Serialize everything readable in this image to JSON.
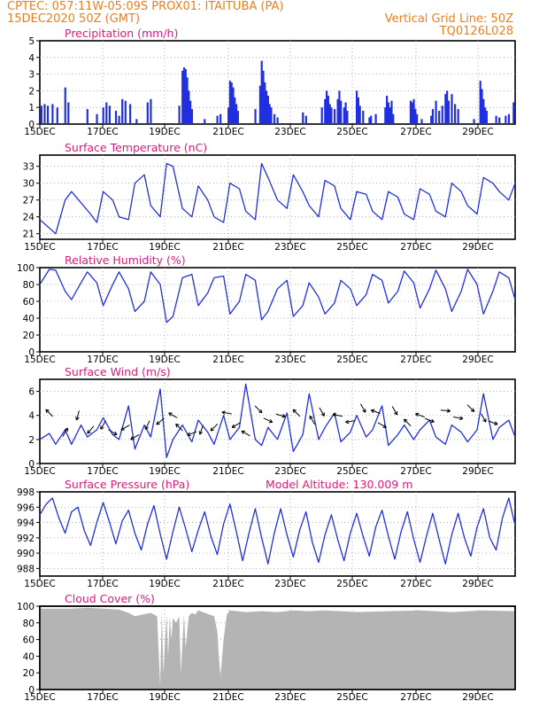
{
  "header": {
    "line1_left": "CPTEC:  057:11W-05:09S  PROX01: ITAITUBA (PA)",
    "line2_left": "15DEC2020 50Z (GMT)",
    "line2_right": "Vertical Grid Line: 50Z",
    "line3_right": "TQ0126L028"
  },
  "colors": {
    "header": "#f07d1a",
    "title": "#e0197a",
    "series": "#2030e0",
    "cloud": "#b4b4b4",
    "grid": "#9a9a9a"
  },
  "x_ticks": [
    "15DEC",
    "17DEC",
    "19DEC",
    "21DEC",
    "23DEC",
    "25DEC",
    "27DEC",
    "29DEC"
  ],
  "chart_data": [
    {
      "id": "precip",
      "type": "bar",
      "title": "Precipitation (mm/h)",
      "unit": "mm/h",
      "ylim": [
        0,
        5
      ],
      "yticks": [
        0,
        1,
        2,
        3,
        4,
        5
      ],
      "x_range_days": [
        15,
        30
      ],
      "bars": [
        [
          15.05,
          1.1
        ],
        [
          15.15,
          1.2
        ],
        [
          15.25,
          1.1
        ],
        [
          15.4,
          1.2
        ],
        [
          15.55,
          1.0
        ],
        [
          15.8,
          2.2
        ],
        [
          15.9,
          1.3
        ],
        [
          16.5,
          0.9
        ],
        [
          16.8,
          0.6
        ],
        [
          17.0,
          1.0
        ],
        [
          17.1,
          1.3
        ],
        [
          17.2,
          1.1
        ],
        [
          17.4,
          0.8
        ],
        [
          17.5,
          0.5
        ],
        [
          17.6,
          1.5
        ],
        [
          17.7,
          1.4
        ],
        [
          17.85,
          1.2
        ],
        [
          18.05,
          0.3
        ],
        [
          18.4,
          1.3
        ],
        [
          18.5,
          1.5
        ],
        [
          19.4,
          1.1
        ],
        [
          19.5,
          3.2
        ],
        [
          19.55,
          3.4
        ],
        [
          19.6,
          3.3
        ],
        [
          19.65,
          2.8
        ],
        [
          19.7,
          2.0
        ],
        [
          19.75,
          1.4
        ],
        [
          19.8,
          0.9
        ],
        [
          20.2,
          0.3
        ],
        [
          20.6,
          0.5
        ],
        [
          20.7,
          0.6
        ],
        [
          20.95,
          1.0
        ],
        [
          21.0,
          2.6
        ],
        [
          21.05,
          2.5
        ],
        [
          21.1,
          2.2
        ],
        [
          21.15,
          1.6
        ],
        [
          21.2,
          1.2
        ],
        [
          21.25,
          0.8
        ],
        [
          21.8,
          0.9
        ],
        [
          21.95,
          2.3
        ],
        [
          22.0,
          3.8
        ],
        [
          22.05,
          3.2
        ],
        [
          22.1,
          2.5
        ],
        [
          22.15,
          2.0
        ],
        [
          22.2,
          1.7
        ],
        [
          22.25,
          1.2
        ],
        [
          22.3,
          1.0
        ],
        [
          22.4,
          0.6
        ],
        [
          22.5,
          0.4
        ],
        [
          23.3,
          0.7
        ],
        [
          23.4,
          0.5
        ],
        [
          23.9,
          1.0
        ],
        [
          24.0,
          1.5
        ],
        [
          24.05,
          2.0
        ],
        [
          24.1,
          1.7
        ],
        [
          24.15,
          1.2
        ],
        [
          24.2,
          1.0
        ],
        [
          24.3,
          0.9
        ],
        [
          24.4,
          1.5
        ],
        [
          24.45,
          2.0
        ],
        [
          24.5,
          1.4
        ],
        [
          24.6,
          1.0
        ],
        [
          24.65,
          1.3
        ],
        [
          24.7,
          0.8
        ],
        [
          25.0,
          2.0
        ],
        [
          25.05,
          1.6
        ],
        [
          25.1,
          1.1
        ],
        [
          25.2,
          0.8
        ],
        [
          25.4,
          0.4
        ],
        [
          25.45,
          0.5
        ],
        [
          25.6,
          0.6
        ],
        [
          25.9,
          1.0
        ],
        [
          25.95,
          1.7
        ],
        [
          26.0,
          1.3
        ],
        [
          26.05,
          1.0
        ],
        [
          26.1,
          1.4
        ],
        [
          26.15,
          0.6
        ],
        [
          26.7,
          1.4
        ],
        [
          26.75,
          1.3
        ],
        [
          26.8,
          1.5
        ],
        [
          26.85,
          0.9
        ],
        [
          26.9,
          0.6
        ],
        [
          27.05,
          0.3
        ],
        [
          27.35,
          0.5
        ],
        [
          27.4,
          0.9
        ],
        [
          27.5,
          1.4
        ],
        [
          27.6,
          0.8
        ],
        [
          27.7,
          1.1
        ],
        [
          27.8,
          1.8
        ],
        [
          27.85,
          2.0
        ],
        [
          27.9,
          1.4
        ],
        [
          28.0,
          1.8
        ],
        [
          28.1,
          1.2
        ],
        [
          28.2,
          0.9
        ],
        [
          28.7,
          0.3
        ],
        [
          28.9,
          2.6
        ],
        [
          28.95,
          2.1
        ],
        [
          29.0,
          1.5
        ],
        [
          29.05,
          1.0
        ],
        [
          29.1,
          0.8
        ],
        [
          29.4,
          0.5
        ],
        [
          29.5,
          0.4
        ],
        [
          29.7,
          0.5
        ],
        [
          29.8,
          0.6
        ],
        [
          29.95,
          1.3
        ]
      ]
    },
    {
      "id": "temp",
      "type": "line",
      "title": "Surface Temperature (nC)",
      "unit": "nC",
      "ylim": [
        20,
        35
      ],
      "yticks": [
        21,
        24,
        27,
        30,
        33
      ],
      "x_range_days": [
        15,
        30
      ],
      "x": [
        15.0,
        15.3,
        15.5,
        15.8,
        16.0,
        16.3,
        16.6,
        16.8,
        17.0,
        17.3,
        17.5,
        17.8,
        18.0,
        18.3,
        18.5,
        18.8,
        19.0,
        19.2,
        19.5,
        19.8,
        20.0,
        20.3,
        20.5,
        20.8,
        21.0,
        21.3,
        21.5,
        21.8,
        22.0,
        22.2,
        22.5,
        22.8,
        23.0,
        23.3,
        23.5,
        23.8,
        24.0,
        24.3,
        24.5,
        24.8,
        25.0,
        25.3,
        25.5,
        25.8,
        26.0,
        26.3,
        26.5,
        26.8,
        27.0,
        27.3,
        27.5,
        27.8,
        28.0,
        28.3,
        28.5,
        28.8,
        29.0,
        29.3,
        29.5,
        29.8,
        30.0
      ],
      "values": [
        23.5,
        22.0,
        21.0,
        27.0,
        28.5,
        26.5,
        24.5,
        23.0,
        28.5,
        27.0,
        24.0,
        23.5,
        30.0,
        31.5,
        26.0,
        24.0,
        33.5,
        33.0,
        25.5,
        24.0,
        29.5,
        27.0,
        24.0,
        23.0,
        30.0,
        29.0,
        25.0,
        23.5,
        33.5,
        31.0,
        27.0,
        25.5,
        31.5,
        28.5,
        26.0,
        24.0,
        30.5,
        29.5,
        25.5,
        23.5,
        28.5,
        28.0,
        25.0,
        23.5,
        28.5,
        27.5,
        24.5,
        23.5,
        29.0,
        28.0,
        25.0,
        24.0,
        30.0,
        28.5,
        26.0,
        24.5,
        31.0,
        30.0,
        28.5,
        27.0,
        30.0
      ]
    },
    {
      "id": "rh",
      "type": "line",
      "title": "Relative Humidity (%)",
      "unit": "%",
      "ylim": [
        0,
        100
      ],
      "yticks": [
        0,
        20,
        40,
        60,
        80,
        100
      ],
      "x_range_days": [
        15,
        30
      ],
      "x": [
        15.0,
        15.3,
        15.5,
        15.8,
        16.0,
        16.3,
        16.5,
        16.8,
        17.0,
        17.3,
        17.5,
        17.8,
        18.0,
        18.3,
        18.5,
        18.8,
        19.0,
        19.2,
        19.5,
        19.8,
        20.0,
        20.3,
        20.5,
        20.8,
        21.0,
        21.3,
        21.5,
        21.8,
        22.0,
        22.2,
        22.5,
        22.8,
        23.0,
        23.3,
        23.5,
        23.8,
        24.0,
        24.3,
        24.5,
        24.8,
        25.0,
        25.3,
        25.5,
        25.8,
        26.0,
        26.3,
        26.5,
        26.8,
        27.0,
        27.3,
        27.5,
        27.8,
        28.0,
        28.3,
        28.5,
        28.8,
        29.0,
        29.3,
        29.5,
        29.8,
        30.0
      ],
      "values": [
        80,
        98,
        97,
        72,
        62,
        82,
        95,
        82,
        55,
        80,
        95,
        75,
        48,
        60,
        95,
        80,
        35,
        42,
        88,
        92,
        55,
        70,
        88,
        90,
        45,
        60,
        92,
        85,
        38,
        48,
        75,
        85,
        42,
        55,
        82,
        65,
        45,
        58,
        85,
        75,
        55,
        68,
        92,
        85,
        58,
        72,
        96,
        82,
        52,
        75,
        97,
        75,
        48,
        72,
        98,
        80,
        45,
        72,
        95,
        88,
        62
      ]
    },
    {
      "id": "wind",
      "type": "line",
      "title": "Surface Wind (m/s)",
      "unit": "m/s",
      "ylim": [
        0,
        7
      ],
      "yticks": [
        0,
        2,
        4,
        6
      ],
      "x_range_days": [
        15,
        30
      ],
      "x": [
        15.0,
        15.3,
        15.5,
        15.8,
        16.0,
        16.3,
        16.5,
        16.8,
        17.0,
        17.3,
        17.5,
        17.8,
        18.0,
        18.3,
        18.5,
        18.8,
        19.0,
        19.2,
        19.5,
        19.8,
        20.0,
        20.3,
        20.5,
        20.8,
        21.0,
        21.3,
        21.5,
        21.8,
        22.0,
        22.2,
        22.5,
        22.8,
        23.0,
        23.3,
        23.5,
        23.8,
        24.0,
        24.3,
        24.5,
        24.8,
        25.0,
        25.3,
        25.5,
        25.8,
        26.0,
        26.3,
        26.5,
        26.8,
        27.0,
        27.3,
        27.5,
        27.8,
        28.0,
        28.3,
        28.5,
        28.8,
        29.0,
        29.3,
        29.5,
        29.8,
        30.0
      ],
      "values": [
        2.0,
        2.5,
        1.6,
        2.8,
        1.6,
        3.2,
        2.2,
        2.8,
        3.8,
        2.4,
        2.0,
        4.8,
        1.2,
        3.2,
        2.2,
        6.2,
        0.5,
        2.0,
        3.2,
        1.8,
        3.6,
        2.6,
        1.6,
        4.0,
        2.0,
        3.0,
        6.6,
        2.0,
        1.5,
        3.0,
        2.0,
        4.2,
        1.0,
        2.4,
        5.8,
        2.0,
        3.0,
        4.2,
        1.8,
        2.6,
        4.0,
        2.2,
        2.8,
        4.8,
        1.5,
        2.4,
        3.2,
        2.0,
        2.8,
        3.6,
        2.2,
        1.6,
        3.2,
        2.6,
        1.8,
        2.8,
        5.8,
        2.0,
        3.0,
        3.6,
        2.2
      ],
      "arrows": [
        [
          15.3,
          4.2,
          135
        ],
        [
          15.8,
          2.6,
          60
        ],
        [
          16.2,
          4.0,
          -105
        ],
        [
          16.6,
          2.8,
          -130
        ],
        [
          17.0,
          3.2,
          -120
        ],
        [
          17.3,
          2.6,
          -30
        ],
        [
          17.7,
          3.0,
          -150
        ],
        [
          18.0,
          2.2,
          -150
        ],
        [
          18.4,
          3.2,
          -115
        ],
        [
          18.8,
          3.5,
          -140
        ],
        [
          19.2,
          4.0,
          150
        ],
        [
          19.4,
          3.0,
          135
        ],
        [
          19.8,
          2.5,
          -160
        ],
        [
          20.1,
          2.8,
          -110
        ],
        [
          20.5,
          3.0,
          -135
        ],
        [
          20.9,
          4.2,
          170
        ],
        [
          21.2,
          3.2,
          -150
        ],
        [
          21.5,
          2.5,
          150
        ],
        [
          21.9,
          4.5,
          -45
        ],
        [
          22.2,
          3.6,
          -25
        ],
        [
          22.6,
          4.0,
          -15
        ],
        [
          23.1,
          4.2,
          135
        ],
        [
          23.6,
          3.6,
          120
        ],
        [
          23.9,
          4.3,
          -60
        ],
        [
          24.4,
          4.0,
          170
        ],
        [
          24.8,
          3.5,
          -170
        ],
        [
          25.2,
          4.6,
          -60
        ],
        [
          25.6,
          4.3,
          160
        ],
        [
          25.8,
          3.2,
          -30
        ],
        [
          26.2,
          4.4,
          -60
        ],
        [
          26.6,
          3.4,
          135
        ],
        [
          27.0,
          4.0,
          160
        ],
        [
          27.3,
          3.6,
          -20
        ],
        [
          27.8,
          4.4,
          -5
        ],
        [
          28.2,
          3.8,
          -10
        ],
        [
          28.6,
          4.6,
          -45
        ],
        [
          29.0,
          3.8,
          -60
        ],
        [
          29.3,
          3.4,
          -20
        ]
      ]
    },
    {
      "id": "pressure",
      "type": "line",
      "title": "Surface Pressure (hPa)",
      "subtitle": "Model Altitude: 130.009 m",
      "unit": "hPa",
      "ylim": [
        987,
        998
      ],
      "yticks": [
        988,
        990,
        992,
        994,
        996,
        998
      ],
      "x_range_days": [
        15,
        30
      ],
      "x": [
        15.0,
        15.2,
        15.4,
        15.6,
        15.8,
        16.0,
        16.2,
        16.4,
        16.6,
        16.8,
        17.0,
        17.2,
        17.4,
        17.6,
        17.8,
        18.0,
        18.2,
        18.4,
        18.6,
        18.8,
        19.0,
        19.2,
        19.4,
        19.6,
        19.8,
        20.0,
        20.2,
        20.4,
        20.6,
        20.8,
        21.0,
        21.2,
        21.4,
        21.6,
        21.8,
        22.0,
        22.2,
        22.4,
        22.6,
        22.8,
        23.0,
        23.2,
        23.4,
        23.6,
        23.8,
        24.0,
        24.2,
        24.4,
        24.6,
        24.8,
        25.0,
        25.2,
        25.4,
        25.6,
        25.8,
        26.0,
        26.2,
        26.4,
        26.6,
        26.8,
        27.0,
        27.2,
        27.4,
        27.6,
        27.8,
        28.0,
        28.2,
        28.4,
        28.6,
        28.8,
        29.0,
        29.2,
        29.4,
        29.6,
        29.8,
        30.0
      ],
      "values": [
        995.0,
        996.4,
        997.2,
        994.6,
        992.6,
        995.4,
        996.0,
        993.0,
        991.0,
        994.0,
        996.6,
        994.0,
        991.2,
        994.2,
        995.6,
        992.6,
        990.4,
        993.8,
        996.2,
        992.5,
        989.2,
        992.8,
        996.0,
        993.2,
        990.2,
        993.0,
        995.4,
        992.2,
        989.8,
        993.8,
        996.4,
        992.8,
        989.0,
        992.6,
        995.8,
        992.0,
        988.6,
        992.6,
        995.8,
        992.4,
        989.5,
        993.0,
        995.4,
        991.4,
        988.8,
        992.4,
        995.0,
        991.8,
        989.0,
        992.6,
        995.2,
        992.2,
        989.6,
        993.4,
        995.6,
        992.2,
        989.2,
        992.8,
        995.4,
        991.8,
        988.8,
        992.2,
        995.2,
        991.8,
        988.6,
        992.4,
        995.2,
        992.0,
        989.6,
        993.4,
        995.8,
        992.0,
        990.4,
        994.6,
        997.2,
        993.6
      ]
    },
    {
      "id": "cloud",
      "type": "area",
      "title": "Cloud Cover (%)",
      "unit": "%",
      "ylim": [
        0,
        100
      ],
      "yticks": [
        0,
        20,
        40,
        60,
        80,
        100
      ],
      "x_range_days": [
        15,
        30
      ],
      "x": [
        15.0,
        15.5,
        16.0,
        16.5,
        17.0,
        17.5,
        17.8,
        18.0,
        18.5,
        18.7,
        18.8,
        18.85,
        18.9,
        19.0,
        19.05,
        19.1,
        19.15,
        19.2,
        19.3,
        19.4,
        19.45,
        19.55,
        19.6,
        19.7,
        19.8,
        19.9,
        20.0,
        20.5,
        20.6,
        20.65,
        20.7,
        20.8,
        20.9,
        21.0,
        21.5,
        22.0,
        22.5,
        23.0,
        23.5,
        24.0,
        25.0,
        26.0,
        27.0,
        28.0,
        29.0,
        30.0
      ],
      "values": [
        97,
        97,
        97,
        98,
        97,
        96,
        92,
        88,
        92,
        88,
        4,
        95,
        20,
        90,
        40,
        88,
        60,
        86,
        80,
        88,
        20,
        90,
        50,
        88,
        92,
        90,
        95,
        88,
        70,
        40,
        15,
        60,
        90,
        95,
        93,
        94,
        93,
        95,
        94,
        95,
        93,
        94,
        95,
        93,
        95,
        94
      ]
    }
  ]
}
